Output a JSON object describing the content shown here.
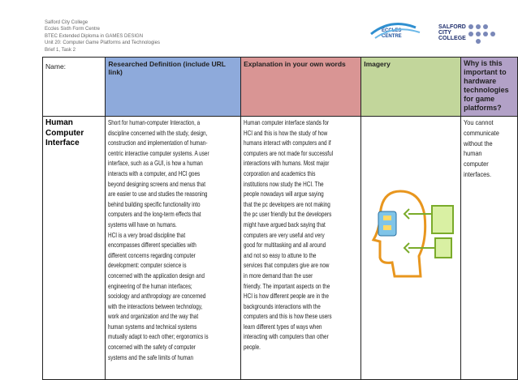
{
  "header": {
    "lines": [
      "Salford City College",
      "Eccles Sixth Form Centre",
      "BTEC Extended Diploma in GAMES DESIGN",
      "Unit 20: Computer Game Platforms and Technologies",
      "Brief 1, Task 2"
    ],
    "logos": {
      "eccles": [
        "ECCLES",
        "CENTRE"
      ],
      "salford": [
        "SALFORD",
        "CITY",
        "COLLEGE"
      ]
    }
  },
  "table": {
    "headers": [
      "Name:",
      "Researched Definition (include URL link)",
      "Explanation in your own words",
      "Imagery",
      "Why is this important to hardware technologies for game platforms?"
    ],
    "rows": [
      {
        "name": "Human Computer Interface",
        "researched": [
          "Short for human-computer Interaction, a",
          "discipline concerned with the study, design,",
          "construction and implementation of human-",
          "centric interactive computer systems. A user",
          "interface, such as a GUI, is how a human",
          "interacts with a computer, and HCI goes",
          "beyond designing screens and menus that",
          "are easier to use and studies the reasoning",
          "behind building specific functionality into",
          "computers and the long-term effects that",
          "systems will have on humans.",
          "HCI is a very broad discipline that",
          "encompasses different specialties with",
          "different concerns regarding computer",
          "development: computer science is",
          "concerned with the application design and",
          "engineering of the human interfaces;",
          "sociology and anthropology are concerned",
          "with the interactions between technology,",
          "work and organization and the way that",
          "human systems and technical systems",
          "mutually adapt to each other; ergonomics is",
          "concerned with the safety of computer",
          "systems and the safe limits of human"
        ],
        "explanation": [
          "Human computer interface stands for",
          "HCI and this is how the study of how",
          "humans interact with computers and if",
          "computers are not made for successful",
          "interactions with humans. Most major",
          "corporation and academics this",
          "institutions now study the HCI. The",
          "people nowadays will argue saying",
          "that the pc developers are not making",
          "the pc user friendly but the developers",
          "might have argued back saying that",
          "computers are very useful and very",
          "good for multitasking and all around",
          "and not so easy to attune to the",
          "services that computers give are now",
          "in more demand than the user",
          "friendly. The important aspects on the",
          "HCI is how different people are in the",
          "backgrounds interactions with the",
          "computers and this is how these users",
          "learn different types of ways when",
          "interacting with computers than other",
          "people."
        ],
        "why": [
          "You cannot",
          "communicate",
          "without the",
          "human",
          "computer",
          "interfaces."
        ]
      }
    ]
  }
}
